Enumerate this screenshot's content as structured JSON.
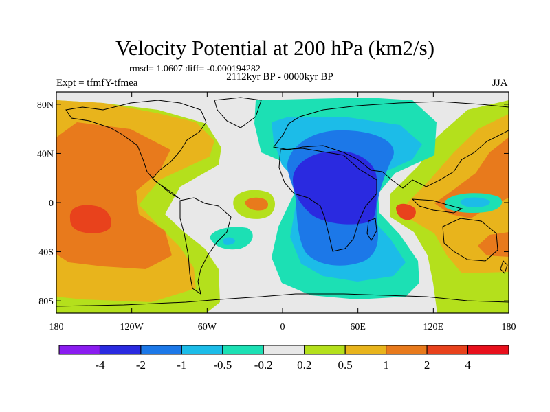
{
  "title": "Velocity Potential at 200 hPa (km2/s)",
  "stats": "rmsd= 1.0607 diff= -0.000194282",
  "experiment": "Expt = tfmfY-tfmea",
  "period": "2112kyr BP - 0000kyr BP",
  "season": "JJA",
  "chart_data": {
    "type": "map",
    "projection": "cylindrical-equidistant",
    "lon_range": [
      -180,
      180
    ],
    "lat_range": [
      -90,
      90
    ],
    "x_ticks": [
      {
        "lon": -180,
        "label": "180"
      },
      {
        "lon": -120,
        "label": "120W"
      },
      {
        "lon": -60,
        "label": "60W"
      },
      {
        "lon": 0,
        "label": "0"
      },
      {
        "lon": 60,
        "label": "60E"
      },
      {
        "lon": 120,
        "label": "120E"
      },
      {
        "lon": 180,
        "label": "180"
      }
    ],
    "y_ticks": [
      {
        "lat": 80,
        "label": "80N"
      },
      {
        "lat": 40,
        "label": "40N"
      },
      {
        "lat": 0,
        "label": "0"
      },
      {
        "lat": -40,
        "label": "40S"
      },
      {
        "lat": -80,
        "label": "80S"
      }
    ],
    "colorbar": {
      "levels": [
        -4,
        -2,
        -1,
        -0.5,
        -0.2,
        0.2,
        0.5,
        1,
        2,
        4
      ],
      "labels": [
        "-4",
        "-2",
        "-1",
        "-0.5",
        "-0.2",
        "0.2",
        "0.5",
        "1",
        "2",
        "4"
      ],
      "colors": [
        "#8a1cf0",
        "#2a2ae0",
        "#1c78e8",
        "#1cbce8",
        "#1ce0b4",
        "#e8e8e8",
        "#b4e01c",
        "#e8b41c",
        "#e87a1c",
        "#e8421c",
        "#e8101c"
      ]
    }
  }
}
